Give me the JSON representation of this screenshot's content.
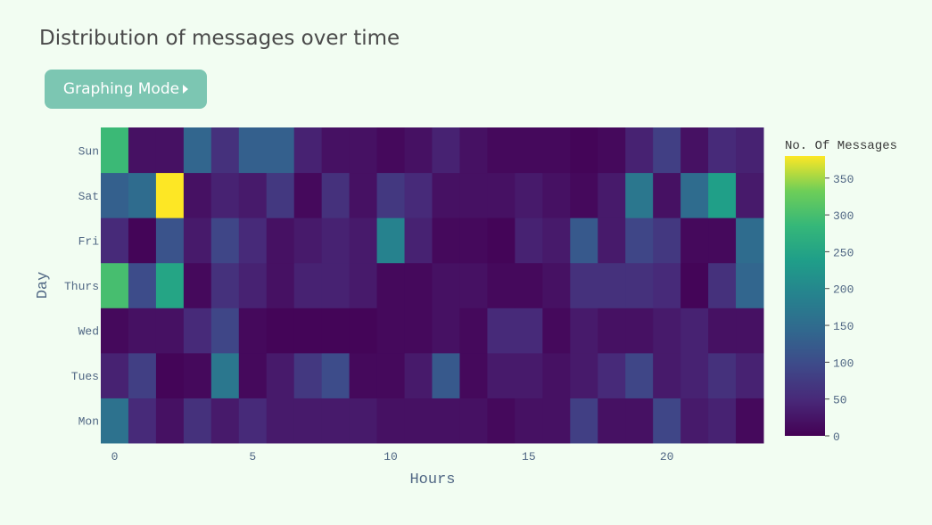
{
  "page": {
    "title": "Distribution of messages over time"
  },
  "button": {
    "label": "Graphing Mode"
  },
  "colors": {
    "background": "#f2fdf2",
    "button": "#7cc6b2",
    "tick_text": "#506784"
  },
  "chart_data": {
    "type": "heatmap",
    "xlabel": "Hours",
    "ylabel": "Day",
    "x": [
      0,
      1,
      2,
      3,
      4,
      5,
      6,
      7,
      8,
      9,
      10,
      11,
      12,
      13,
      14,
      15,
      16,
      17,
      18,
      19,
      20,
      21,
      22,
      23
    ],
    "x_ticks": [
      0,
      5,
      10,
      15,
      20
    ],
    "y": [
      "Mon",
      "Tues",
      "Wed",
      "Thurs",
      "Fri",
      "Sat",
      "Sun"
    ],
    "colorscale": "Viridis",
    "colorbar": {
      "title": "No. Of Messages",
      "ticks": [
        0,
        50,
        100,
        150,
        200,
        250,
        300,
        350
      ],
      "zmin": 0,
      "zmax": 380
    },
    "z": [
      [
        160,
        50,
        20,
        60,
        30,
        50,
        30,
        30,
        30,
        30,
        20,
        20,
        20,
        20,
        10,
        20,
        20,
        80,
        20,
        20,
        90,
        30,
        40,
        10
      ],
      [
        40,
        80,
        5,
        10,
        170,
        10,
        30,
        70,
        100,
        10,
        10,
        30,
        120,
        10,
        30,
        30,
        20,
        30,
        50,
        90,
        30,
        40,
        60,
        40
      ],
      [
        10,
        20,
        20,
        50,
        90,
        10,
        5,
        5,
        5,
        5,
        10,
        10,
        20,
        10,
        50,
        50,
        10,
        30,
        20,
        20,
        30,
        40,
        20,
        20
      ],
      [
        300,
        100,
        250,
        10,
        60,
        40,
        20,
        40,
        40,
        30,
        10,
        10,
        20,
        20,
        10,
        10,
        20,
        60,
        60,
        60,
        50,
        5,
        60,
        140
      ],
      [
        50,
        5,
        110,
        30,
        90,
        50,
        20,
        30,
        40,
        30,
        190,
        40,
        10,
        10,
        5,
        40,
        30,
        120,
        30,
        90,
        70,
        10,
        10,
        150
      ],
      [
        130,
        150,
        380,
        20,
        40,
        30,
        70,
        10,
        60,
        20,
        70,
        50,
        20,
        20,
        20,
        30,
        20,
        10,
        30,
        170,
        20,
        150,
        240,
        30
      ],
      [
        290,
        20,
        20,
        140,
        60,
        130,
        130,
        40,
        20,
        20,
        10,
        20,
        40,
        20,
        10,
        10,
        10,
        5,
        10,
        40,
        80,
        20,
        50,
        40
      ]
    ]
  }
}
